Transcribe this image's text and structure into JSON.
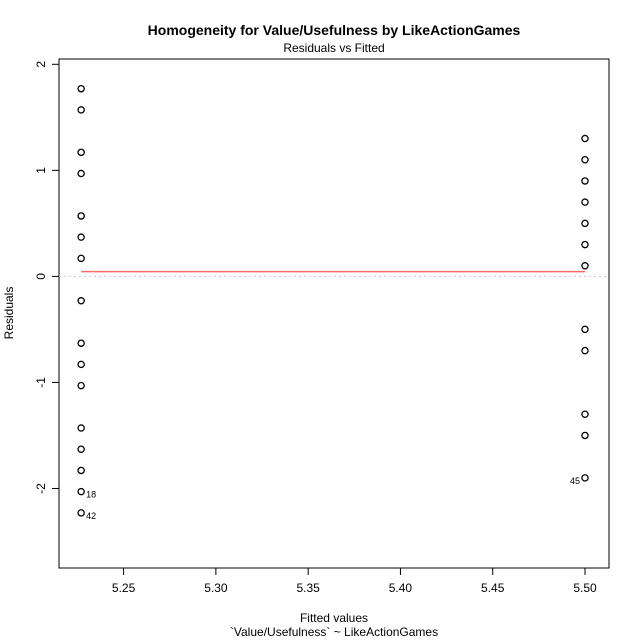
{
  "chart_data": {
    "type": "scatter",
    "title": "Homogeneity for Value/Usefulness by LikeActionGames",
    "subtitle": "Residuals vs Fitted",
    "xlabel": "Fitted values",
    "xlabel2": "`Value/Usefulness` ~ LikeActionGames",
    "ylabel": "Residuals",
    "xlim": [
      5.215,
      5.513
    ],
    "ylim": [
      -2.75,
      2.05
    ],
    "xticks": [
      "5.25",
      "5.30",
      "5.35",
      "5.40",
      "5.45",
      "5.50"
    ],
    "yticks": [
      "-2",
      "-1",
      "0",
      "1",
      "2"
    ],
    "points": [
      {
        "x": 5.227,
        "y": 1.77
      },
      {
        "x": 5.227,
        "y": 1.57
      },
      {
        "x": 5.227,
        "y": 1.17
      },
      {
        "x": 5.227,
        "y": 0.97
      },
      {
        "x": 5.227,
        "y": 0.57
      },
      {
        "x": 5.227,
        "y": 0.37
      },
      {
        "x": 5.227,
        "y": 0.17
      },
      {
        "x": 5.227,
        "y": -0.23
      },
      {
        "x": 5.227,
        "y": -0.63
      },
      {
        "x": 5.227,
        "y": -0.83
      },
      {
        "x": 5.227,
        "y": -1.03
      },
      {
        "x": 5.227,
        "y": -1.43
      },
      {
        "x": 5.227,
        "y": -1.63
      },
      {
        "x": 5.227,
        "y": -1.83
      },
      {
        "x": 5.227,
        "y": -2.03
      },
      {
        "x": 5.227,
        "y": -2.23
      },
      {
        "x": 5.5,
        "y": 1.3
      },
      {
        "x": 5.5,
        "y": 1.1
      },
      {
        "x": 5.5,
        "y": 0.9
      },
      {
        "x": 5.5,
        "y": 0.7
      },
      {
        "x": 5.5,
        "y": 0.5
      },
      {
        "x": 5.5,
        "y": 0.3
      },
      {
        "x": 5.5,
        "y": 0.1
      },
      {
        "x": 5.5,
        "y": -0.5
      },
      {
        "x": 5.5,
        "y": -0.7
      },
      {
        "x": 5.5,
        "y": -1.3
      },
      {
        "x": 5.5,
        "y": -1.5
      },
      {
        "x": 5.5,
        "y": -1.9
      }
    ],
    "labeled_points": [
      {
        "label": "18",
        "x": 5.227,
        "y": -2.03,
        "side": "right"
      },
      {
        "label": "42",
        "x": 5.227,
        "y": -2.23,
        "side": "right"
      },
      {
        "label": "45",
        "x": 5.5,
        "y": -1.9,
        "side": "left"
      }
    ],
    "smooth_line": {
      "x": [
        5.227,
        5.5
      ],
      "y": [
        0.045,
        0.045
      ],
      "color": "#ff6b6b"
    },
    "reference_line": {
      "y": 0,
      "color": "#c8c8c8",
      "style": "dotted"
    },
    "grid": false
  }
}
